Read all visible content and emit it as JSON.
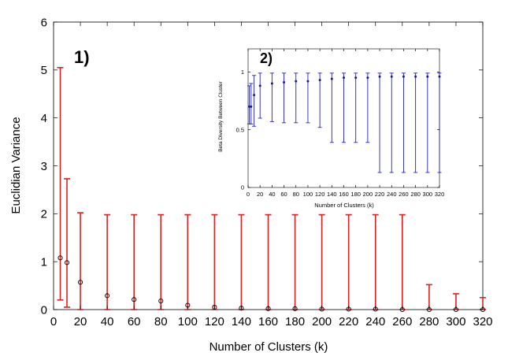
{
  "chart_data": [
    {
      "type": "scatter",
      "panel_label": "1)",
      "xlabel": "Number of Clusters (k)",
      "ylabel": "Euclidian Variance",
      "xlim": [
        0,
        320
      ],
      "ylim": [
        0,
        6
      ],
      "xticks": [
        0,
        20,
        40,
        60,
        80,
        100,
        120,
        140,
        160,
        180,
        200,
        220,
        240,
        260,
        280,
        300,
        320
      ],
      "yticks": [
        0,
        1,
        2,
        3,
        4,
        5,
        6
      ],
      "grid": false,
      "colors": {
        "errorbar": "#e02020",
        "marker": "#000000"
      },
      "series": [
        {
          "x": [
            5,
            10,
            20,
            40,
            60,
            80,
            100,
            120,
            140,
            160,
            180,
            200,
            220,
            240,
            260,
            280,
            300,
            320
          ],
          "y": [
            1.08,
            0.98,
            0.57,
            0.29,
            0.21,
            0.18,
            0.09,
            0.05,
            0.03,
            0.02,
            0.02,
            0.01,
            0.01,
            0.01,
            0.0,
            0.0,
            0.0,
            0.0
          ],
          "lower": [
            0.2,
            0.05,
            0.0,
            0.0,
            0.0,
            0.0,
            0.0,
            0.0,
            0.0,
            0.0,
            0.0,
            0.0,
            0.0,
            0.0,
            0.0,
            0.0,
            0.0,
            0.0
          ],
          "upper": [
            5.05,
            2.73,
            2.02,
            1.98,
            1.98,
            1.98,
            1.98,
            1.98,
            1.98,
            1.98,
            1.98,
            1.98,
            1.98,
            1.98,
            1.98,
            0.52,
            0.33,
            0.25
          ]
        }
      ]
    },
    {
      "type": "scatter",
      "panel_label": "2)",
      "xlabel": "Number of Clusters (k)",
      "ylabel": "Beta Diversity Between Cluster",
      "xlim": [
        0,
        320
      ],
      "ylim": [
        0,
        1.2
      ],
      "xticks": [
        0,
        20,
        40,
        60,
        80,
        100,
        120,
        140,
        160,
        180,
        200,
        220,
        240,
        260,
        280,
        300,
        320
      ],
      "yticks": [
        0,
        0.5,
        1
      ],
      "ytick_labels": [
        "0",
        "0.5",
        "1"
      ],
      "grid": false,
      "colors": {
        "errorbar": "#2020c0",
        "marker": "#1a1a8a"
      },
      "series": [
        {
          "x": [
            2,
            5,
            10,
            20,
            40,
            60,
            80,
            100,
            120,
            140,
            160,
            180,
            200,
            220,
            240,
            260,
            280,
            300,
            320
          ],
          "y": [
            0.7,
            0.7,
            0.8,
            0.88,
            0.9,
            0.91,
            0.92,
            0.92,
            0.93,
            0.94,
            0.95,
            0.95,
            0.95,
            0.96,
            0.96,
            0.96,
            0.96,
            0.96,
            0.96
          ],
          "lower": [
            0.55,
            0.55,
            0.53,
            0.6,
            0.57,
            0.56,
            0.56,
            0.56,
            0.52,
            0.39,
            0.39,
            0.39,
            0.39,
            0.13,
            0.13,
            0.13,
            0.13,
            0.13,
            0.13
          ],
          "upper": [
            0.88,
            0.9,
            0.97,
            0.99,
            0.99,
            0.99,
            0.99,
            0.99,
            0.99,
            0.99,
            0.99,
            0.99,
            0.99,
            0.99,
            0.99,
            0.99,
            0.99,
            0.99,
            0.99
          ]
        }
      ]
    }
  ]
}
